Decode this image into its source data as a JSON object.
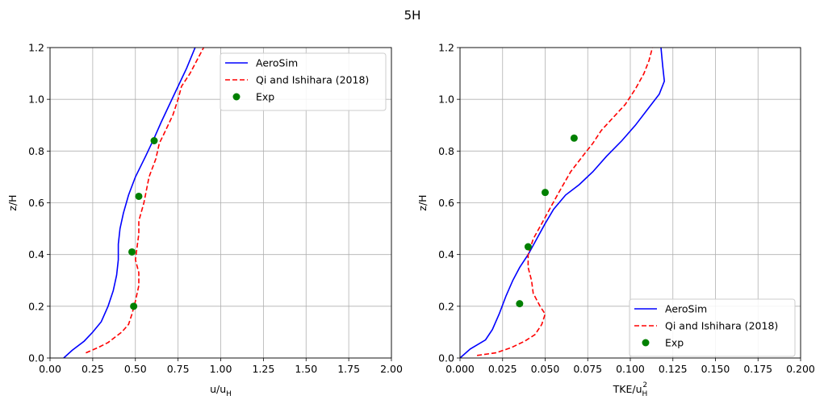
{
  "figure": {
    "suptitle": "5H"
  },
  "colors": {
    "aerosim": "#0000ff",
    "qi": "#ff0000",
    "exp": "#008000",
    "grid": "#b0b0b0",
    "axes": "#000000"
  },
  "chart_data": [
    {
      "type": "line",
      "xlabel": "u/u_H",
      "ylabel": "z/H",
      "xlim": [
        0,
        2.0
      ],
      "ylim": [
        0,
        1.2
      ],
      "x_ticks": [
        "0.00",
        "0.25",
        "0.50",
        "0.75",
        "1.00",
        "1.25",
        "1.50",
        "1.75",
        "2.00"
      ],
      "y_ticks": [
        "0.0",
        "0.2",
        "0.4",
        "0.6",
        "0.8",
        "1.0",
        "1.2"
      ],
      "grid": true,
      "legend_position": "top-right",
      "series": [
        {
          "name": "AeroSim",
          "style": "solid",
          "color": "#0000ff",
          "points": [
            [
              0.08,
              0.0
            ],
            [
              0.13,
              0.03
            ],
            [
              0.2,
              0.065
            ],
            [
              0.25,
              0.1
            ],
            [
              0.3,
              0.14
            ],
            [
              0.34,
              0.2
            ],
            [
              0.37,
              0.26
            ],
            [
              0.39,
              0.32
            ],
            [
              0.4,
              0.38
            ],
            [
              0.4,
              0.44
            ],
            [
              0.41,
              0.5
            ],
            [
              0.43,
              0.56
            ],
            [
              0.46,
              0.63
            ],
            [
              0.5,
              0.7
            ],
            [
              0.56,
              0.78
            ],
            [
              0.61,
              0.85
            ],
            [
              0.65,
              0.91
            ],
            [
              0.7,
              0.98
            ],
            [
              0.75,
              1.05
            ],
            [
              0.8,
              1.12
            ],
            [
              0.85,
              1.2
            ]
          ]
        },
        {
          "name": "Qi and Ishihara (2018)",
          "style": "dashed",
          "color": "#ff0000",
          "points": [
            [
              0.21,
              0.02
            ],
            [
              0.28,
              0.04
            ],
            [
              0.34,
              0.06
            ],
            [
              0.38,
              0.08
            ],
            [
              0.42,
              0.1
            ],
            [
              0.46,
              0.13
            ],
            [
              0.48,
              0.17
            ],
            [
              0.5,
              0.22
            ],
            [
              0.52,
              0.28
            ],
            [
              0.52,
              0.33
            ],
            [
              0.5,
              0.38
            ],
            [
              0.51,
              0.43
            ],
            [
              0.52,
              0.48
            ],
            [
              0.52,
              0.53
            ],
            [
              0.55,
              0.6
            ],
            [
              0.58,
              0.7
            ],
            [
              0.62,
              0.77
            ],
            [
              0.64,
              0.83
            ],
            [
              0.67,
              0.87
            ],
            [
              0.72,
              0.94
            ],
            [
              0.75,
              1.0
            ],
            [
              0.77,
              1.05
            ],
            [
              0.82,
              1.1
            ],
            [
              0.86,
              1.15
            ],
            [
              0.9,
              1.2
            ]
          ]
        },
        {
          "name": "Exp",
          "style": "markers",
          "color": "#008000",
          "points": [
            [
              0.49,
              0.2
            ],
            [
              0.48,
              0.41
            ],
            [
              0.52,
              0.625
            ],
            [
              0.61,
              0.84
            ]
          ]
        }
      ]
    },
    {
      "type": "line",
      "xlabel": "TKE/u_H^2",
      "ylabel": "z/H",
      "xlim": [
        0,
        0.2
      ],
      "ylim": [
        0,
        1.2
      ],
      "x_ticks": [
        "0.000",
        "0.025",
        "0.050",
        "0.075",
        "0.100",
        "0.125",
        "0.150",
        "0.175",
        "0.200"
      ],
      "y_ticks": [
        "0.0",
        "0.2",
        "0.4",
        "0.6",
        "0.8",
        "1.0",
        "1.2"
      ],
      "grid": true,
      "legend_position": "bottom-right",
      "series": [
        {
          "name": "AeroSim",
          "style": "solid",
          "color": "#0000ff",
          "points": [
            [
              0.0,
              0.0
            ],
            [
              0.006,
              0.035
            ],
            [
              0.015,
              0.07
            ],
            [
              0.019,
              0.11
            ],
            [
              0.023,
              0.17
            ],
            [
              0.027,
              0.24
            ],
            [
              0.031,
              0.3
            ],
            [
              0.035,
              0.35
            ],
            [
              0.04,
              0.4
            ],
            [
              0.045,
              0.46
            ],
            [
              0.05,
              0.52
            ],
            [
              0.055,
              0.575
            ],
            [
              0.062,
              0.63
            ],
            [
              0.07,
              0.67
            ],
            [
              0.078,
              0.72
            ],
            [
              0.086,
              0.78
            ],
            [
              0.095,
              0.84
            ],
            [
              0.103,
              0.9
            ],
            [
              0.11,
              0.96
            ],
            [
              0.117,
              1.02
            ],
            [
              0.12,
              1.07
            ],
            [
              0.119,
              1.13
            ],
            [
              0.118,
              1.2
            ]
          ]
        },
        {
          "name": "Qi and Ishihara (2018)",
          "style": "dashed",
          "color": "#ff0000",
          "points": [
            [
              0.01,
              0.01
            ],
            [
              0.021,
              0.02
            ],
            [
              0.03,
              0.04
            ],
            [
              0.038,
              0.065
            ],
            [
              0.044,
              0.09
            ],
            [
              0.048,
              0.13
            ],
            [
              0.05,
              0.17
            ],
            [
              0.047,
              0.2
            ],
            [
              0.043,
              0.25
            ],
            [
              0.042,
              0.3
            ],
            [
              0.04,
              0.35
            ],
            [
              0.04,
              0.4
            ],
            [
              0.043,
              0.46
            ],
            [
              0.048,
              0.52
            ],
            [
              0.053,
              0.58
            ],
            [
              0.058,
              0.64
            ],
            [
              0.065,
              0.72
            ],
            [
              0.072,
              0.78
            ],
            [
              0.078,
              0.83
            ],
            [
              0.083,
              0.88
            ],
            [
              0.09,
              0.93
            ],
            [
              0.097,
              0.98
            ],
            [
              0.103,
              1.04
            ],
            [
              0.108,
              1.1
            ],
            [
              0.111,
              1.15
            ],
            [
              0.113,
              1.2
            ]
          ]
        },
        {
          "name": "Exp",
          "style": "markers",
          "color": "#008000",
          "points": [
            [
              0.035,
              0.21
            ],
            [
              0.04,
              0.43
            ],
            [
              0.05,
              0.64
            ],
            [
              0.067,
              0.85
            ]
          ]
        }
      ]
    }
  ]
}
